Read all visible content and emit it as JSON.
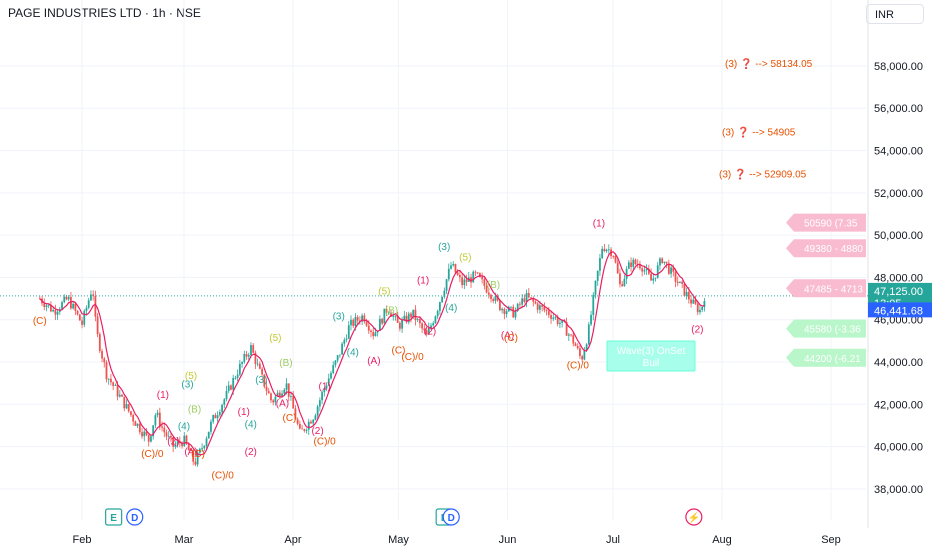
{
  "header": {
    "title": "PAGE INDUSTRIES LTD · 1h · NSE",
    "currency": "INR"
  },
  "colors": {
    "up": "#26a69a",
    "down": "#ef5350",
    "ma": "#e91e63",
    "target": "#e65100",
    "grid": "#f0f3fa",
    "dotted": "#26a69a"
  },
  "chart_data": {
    "type": "candlestick",
    "title": "PAGE INDUSTRIES LTD · 1h · NSE",
    "ylim": [
      37000,
      59700
    ],
    "y_ticks": [
      {
        "v": 38000,
        "label": "38,000.00"
      },
      {
        "v": 40000,
        "label": "40,000.00"
      },
      {
        "v": 42000,
        "label": "42,000.00"
      },
      {
        "v": 44000,
        "label": "44,000.00"
      },
      {
        "v": 46000,
        "label": "46,000.00"
      },
      {
        "v": 48000,
        "label": "48,000.00"
      },
      {
        "v": 50000,
        "label": "50,000.00"
      },
      {
        "v": 52000,
        "label": "52,000.00"
      },
      {
        "v": 54000,
        "label": "54,000.00"
      },
      {
        "v": 56000,
        "label": "56,000.00"
      },
      {
        "v": 58000,
        "label": "58,000.00"
      }
    ],
    "x_ticks": [
      "Feb",
      "Mar",
      "Apr",
      "May",
      "Jun",
      "Jul",
      "Aug",
      "Sep"
    ],
    "price_series": [
      [
        "Jan 20",
        47000
      ],
      [
        "Jan 24",
        46400
      ],
      [
        "Jan 28",
        47000
      ],
      [
        "Feb 1",
        45800
      ],
      [
        "Feb 4",
        47600
      ],
      [
        "Feb 5",
        45500
      ],
      [
        "Feb 8",
        43400
      ],
      [
        "Feb 12",
        42300
      ],
      [
        "Feb 16",
        41200
      ],
      [
        "Feb 20",
        40300
      ],
      [
        "Feb 22",
        41600
      ],
      [
        "Feb 24",
        40800
      ],
      [
        "Feb 27",
        40000
      ],
      [
        "Mar 1",
        40300
      ],
      [
        "Mar 4",
        39200
      ],
      [
        "Mar 6",
        39900
      ],
      [
        "Mar 9",
        41200
      ],
      [
        "Mar 13",
        42400
      ],
      [
        "Mar 16",
        43500
      ],
      [
        "Mar 20",
        44700
      ],
      [
        "Mar 23",
        43300
      ],
      [
        "Mar 26",
        42100
      ],
      [
        "Mar 30",
        43000
      ],
      [
        "Apr 3",
        40600
      ],
      [
        "Apr 7",
        41500
      ],
      [
        "Apr 10",
        42800
      ],
      [
        "Apr 14",
        44300
      ],
      [
        "Apr 17",
        45700
      ],
      [
        "Apr 21",
        46200
      ],
      [
        "Apr 24",
        45300
      ],
      [
        "Apr 28",
        46600
      ],
      [
        "May 1",
        45700
      ],
      [
        "May 5",
        46300
      ],
      [
        "May 9",
        45200
      ],
      [
        "May 12",
        46500
      ],
      [
        "May 16",
        48600
      ],
      [
        "May 19",
        47700
      ],
      [
        "May 23",
        48100
      ],
      [
        "May 27",
        47300
      ],
      [
        "May 30",
        46600
      ],
      [
        "Jun 3",
        46300
      ],
      [
        "Jun 6",
        47100
      ],
      [
        "Jun 10",
        46600
      ],
      [
        "Jun 13",
        46300
      ],
      [
        "Jun 17",
        45700
      ],
      [
        "Jun 20",
        44900
      ],
      [
        "Jun 22",
        44100
      ],
      [
        "Jun 24",
        45400
      ],
      [
        "Jun 26",
        47600
      ],
      [
        "Jun 28",
        49500
      ],
      [
        "Jul 1",
        49200
      ],
      [
        "Jul 3",
        47600
      ],
      [
        "Jul 6",
        48700
      ],
      [
        "Jul 9",
        48600
      ],
      [
        "Jul 12",
        47800
      ],
      [
        "Jul 15",
        48900
      ],
      [
        "Jul 18",
        48100
      ],
      [
        "Jul 21",
        47400
      ],
      [
        "Jul 24",
        46700
      ],
      [
        "Jul 26",
        46400
      ],
      [
        "Jul 27",
        47125
      ]
    ],
    "current_price": {
      "value": 47125,
      "label": "47,125.00",
      "countdown": "13:05"
    },
    "secondary_price": {
      "value": 46441.68,
      "label": "46,441.68"
    },
    "targets": [
      {
        "label": "(3)",
        "icon": "❓",
        "text": "--> 58134.05",
        "y": 58134.05
      },
      {
        "label": "(3)",
        "icon": "❓",
        "text": "--> 54905",
        "y": 54905
      },
      {
        "label": "(3)",
        "icon": "❓",
        "text": "--> 52909.05",
        "y": 52909.05
      }
    ],
    "resistance_tags": [
      {
        "text": "50590 (7.35",
        "y": 50590
      },
      {
        "text": "49380 - 4880",
        "y": 49380
      },
      {
        "text": "47485 - 4713",
        "y": 47485
      }
    ],
    "support_tags": [
      {
        "text": "45580 (-3.36",
        "y": 45580
      },
      {
        "text": "44200 (-6.21",
        "y": 44200
      }
    ],
    "info_box": {
      "line1": "Wave(3) OnSet",
      "line2": "Buil"
    },
    "wave_labels": [
      {
        "t": "(C)",
        "d": "Jan 20",
        "y": 45800,
        "c": "#e65100"
      },
      {
        "t": "(C)/0",
        "d": "Feb 21",
        "y": 39500,
        "c": "#e65100"
      },
      {
        "t": "(1)",
        "d": "Feb 24",
        "y": 42300,
        "c": "#e91e63"
      },
      {
        "t": "(2)",
        "d": "Feb 27",
        "y": 40100,
        "c": "#e91e63"
      },
      {
        "t": "(3)",
        "d": "Mar 2",
        "y": 42800,
        "c": "#26a69a"
      },
      {
        "t": "(5)",
        "d": "Mar 3",
        "y": 43200,
        "c": "#c0ca33"
      },
      {
        "t": "(4)",
        "d": "Mar 1",
        "y": 40800,
        "c": "#26a69a"
      },
      {
        "t": "(B)",
        "d": "Mar 4",
        "y": 41600,
        "c": "#9ccc65"
      },
      {
        "t": "(A)",
        "d": "Mar 3",
        "y": 39600,
        "c": "#e91e63"
      },
      {
        "t": "(C)",
        "d": "Mar 5",
        "y": 39500,
        "c": "#e65100"
      },
      {
        "t": "(C)/0",
        "d": "Mar 12",
        "y": 38500,
        "c": "#e65100"
      },
      {
        "t": "(1)",
        "d": "Mar 18",
        "y": 41500,
        "c": "#e91e63"
      },
      {
        "t": "(2)",
        "d": "Mar 20",
        "y": 39600,
        "c": "#e91e63"
      },
      {
        "t": "(3)",
        "d": "Mar 23",
        "y": 43000,
        "c": "#26a69a"
      },
      {
        "t": "(4)",
        "d": "Mar 20",
        "y": 40900,
        "c": "#26a69a"
      },
      {
        "t": "(5)",
        "d": "Mar 27",
        "y": 45000,
        "c": "#c0ca33"
      },
      {
        "t": "(B)",
        "d": "Mar 30",
        "y": 43800,
        "c": "#9ccc65"
      },
      {
        "t": "(A)",
        "d": "Mar 29",
        "y": 41900,
        "c": "#e91e63"
      },
      {
        "t": "(C)",
        "d": "Mar 31",
        "y": 41200,
        "c": "#e65100"
      },
      {
        "t": "(C)/0",
        "d": "Apr 10",
        "y": 40100,
        "c": "#e65100"
      },
      {
        "t": "(2)",
        "d": "Apr 8",
        "y": 40600,
        "c": "#e91e63"
      },
      {
        "t": "(1)",
        "d": "Apr 10",
        "y": 42700,
        "c": "#e91e63"
      },
      {
        "t": "(3)",
        "d": "Apr 14",
        "y": 46000,
        "c": "#26a69a"
      },
      {
        "t": "(4)",
        "d": "Apr 18",
        "y": 44300,
        "c": "#26a69a"
      },
      {
        "t": "(5)",
        "d": "Apr 27",
        "y": 47200,
        "c": "#c0ca33"
      },
      {
        "t": "(B)",
        "d": "Apr 29",
        "y": 46300,
        "c": "#9ccc65"
      },
      {
        "t": "(A)",
        "d": "Apr 24",
        "y": 43900,
        "c": "#e91e63"
      },
      {
        "t": "(C)",
        "d": "May 1",
        "y": 44400,
        "c": "#e65100"
      },
      {
        "t": "(C)/0",
        "d": "May 5",
        "y": 44100,
        "c": "#e65100"
      },
      {
        "t": "(1)",
        "d": "May 8",
        "y": 47700,
        "c": "#e91e63"
      },
      {
        "t": "(2)",
        "d": "May 10",
        "y": 45300,
        "c": "#e91e63"
      },
      {
        "t": "(3)",
        "d": "May 14",
        "y": 49300,
        "c": "#26a69a"
      },
      {
        "t": "(4)",
        "d": "May 16",
        "y": 46400,
        "c": "#26a69a"
      },
      {
        "t": "(5)",
        "d": "May 20",
        "y": 48800,
        "c": "#c0ca33"
      },
      {
        "t": "(B)",
        "d": "May 28",
        "y": 47500,
        "c": "#9ccc65"
      },
      {
        "t": "(A)",
        "d": "Jun 1",
        "y": 45100,
        "c": "#e91e63"
      },
      {
        "t": "(C)",
        "d": "Jun 2",
        "y": 45000,
        "c": "#e65100"
      },
      {
        "t": "(C)/0",
        "d": "Jun 21",
        "y": 43700,
        "c": "#e65100"
      },
      {
        "t": "(1)",
        "d": "Jun 27",
        "y": 50400,
        "c": "#e91e63"
      },
      {
        "t": "(2)",
        "d": "Jul 25",
        "y": 45400,
        "c": "#e91e63"
      }
    ],
    "events": [
      {
        "t": "E",
        "d": "Feb 10",
        "c": "#26a69a"
      },
      {
        "t": "D",
        "d": "Feb 16",
        "c": "#2962ff"
      },
      {
        "t": "E",
        "d": "May 14",
        "c": "#26a69a"
      },
      {
        "t": "D",
        "d": "May 16",
        "c": "#2962ff"
      },
      {
        "t": "⚡",
        "d": "Jul 24",
        "c": "#e91e63"
      }
    ]
  }
}
